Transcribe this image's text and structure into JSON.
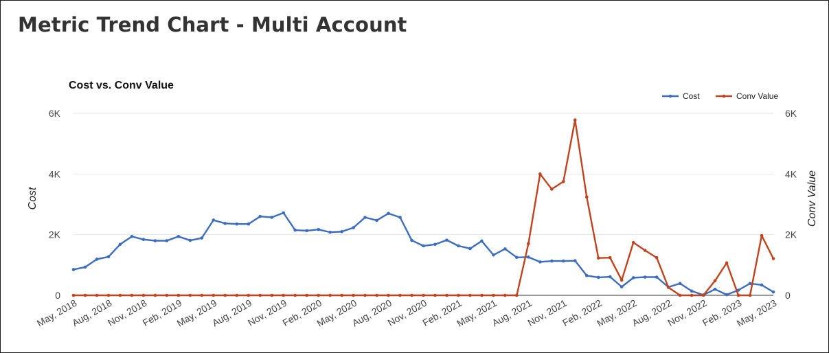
{
  "page": {
    "title": "Metric Trend Chart - Multi Account"
  },
  "chart_data": {
    "type": "line",
    "title": "Cost vs. Conv Value",
    "y_left_label": "Cost",
    "y_right_label": "Conv Value",
    "ylim": [
      0,
      6000
    ],
    "y_ticks": [
      0,
      2000,
      4000,
      6000
    ],
    "y_tick_labels": [
      "0",
      "2K",
      "4K",
      "6K"
    ],
    "grid": true,
    "legend_position": "top-right",
    "x_tick_labels": [
      "May, 2018",
      "Aug, 2018",
      "Nov, 2018",
      "Feb, 2019",
      "May, 2019",
      "Aug, 2019",
      "Nov, 2019",
      "Feb, 2020",
      "May, 2020",
      "Aug, 2020",
      "Nov, 2020",
      "Feb, 2021",
      "May, 2021",
      "Aug, 2021",
      "Nov, 2021",
      "Feb, 2022",
      "May, 2022",
      "Aug, 2022",
      "Nov, 2022",
      "Feb, 2023",
      "May, 2023"
    ],
    "x": [
      "May, 2018",
      "Jun, 2018",
      "Jul, 2018",
      "Aug, 2018",
      "Sep, 2018",
      "Oct, 2018",
      "Nov, 2018",
      "Dec, 2018",
      "Jan, 2019",
      "Feb, 2019",
      "Mar, 2019",
      "Apr, 2019",
      "May, 2019",
      "Jun, 2019",
      "Jul, 2019",
      "Aug, 2019",
      "Sep, 2019",
      "Oct, 2019",
      "Nov, 2019",
      "Dec, 2019",
      "Jan, 2020",
      "Feb, 2020",
      "Mar, 2020",
      "Apr, 2020",
      "May, 2020",
      "Jun, 2020",
      "Jul, 2020",
      "Aug, 2020",
      "Sep, 2020",
      "Oct, 2020",
      "Nov, 2020",
      "Dec, 2020",
      "Jan, 2021",
      "Feb, 2021",
      "Mar, 2021",
      "Apr, 2021",
      "May, 2021",
      "Jun, 2021",
      "Jul, 2021",
      "Aug, 2021",
      "Sep, 2021",
      "Oct, 2021",
      "Nov, 2021",
      "Dec, 2021",
      "Jan, 2022",
      "Feb, 2022",
      "Mar, 2022",
      "Apr, 2022",
      "May, 2022",
      "Jun, 2022",
      "Jul, 2022",
      "Aug, 2022",
      "Sep, 2022",
      "Oct, 2022",
      "Nov, 2022",
      "Dec, 2022",
      "Jan, 2023",
      "Feb, 2023",
      "Mar, 2023",
      "Apr, 2023",
      "May, 2023"
    ],
    "series": [
      {
        "name": "Cost",
        "color": "#3b6cc0",
        "values": [
          850,
          930,
          1190,
          1270,
          1680,
          1940,
          1840,
          1800,
          1800,
          1940,
          1810,
          1890,
          2480,
          2370,
          2350,
          2350,
          2600,
          2570,
          2720,
          2150,
          2130,
          2170,
          2080,
          2100,
          2230,
          2570,
          2470,
          2700,
          2570,
          1810,
          1630,
          1680,
          1820,
          1630,
          1540,
          1790,
          1330,
          1530,
          1250,
          1260,
          1100,
          1130,
          1130,
          1140,
          650,
          590,
          610,
          280,
          580,
          600,
          600,
          270,
          390,
          140,
          10,
          200,
          20,
          170,
          390,
          340,
          110
        ]
      },
      {
        "name": "Conv Value",
        "color": "#c0431d",
        "values": [
          0,
          0,
          0,
          0,
          0,
          0,
          0,
          0,
          0,
          0,
          0,
          0,
          0,
          0,
          0,
          0,
          0,
          0,
          0,
          0,
          0,
          0,
          0,
          0,
          0,
          0,
          0,
          0,
          0,
          0,
          0,
          0,
          0,
          0,
          0,
          0,
          0,
          0,
          0,
          1700,
          4000,
          3500,
          3750,
          5780,
          3240,
          1230,
          1240,
          500,
          1740,
          1480,
          1240,
          260,
          0,
          0,
          0,
          480,
          1070,
          0,
          0,
          1970,
          1210
        ]
      }
    ]
  }
}
